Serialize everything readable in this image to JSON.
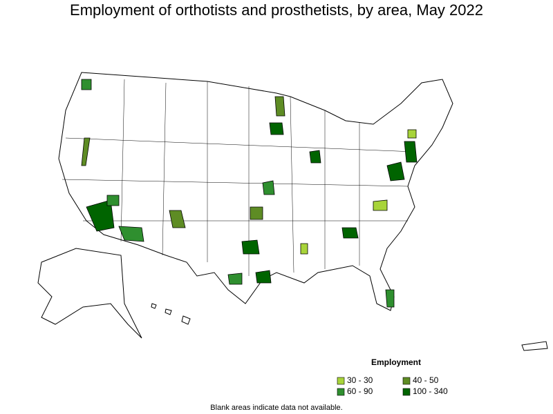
{
  "title": "Employment of orthotists and prosthetists, by area, May 2022",
  "legend": {
    "title": "Employment",
    "items": [
      {
        "label": "30 - 30",
        "color": "#a8d43a"
      },
      {
        "label": "40 - 50",
        "color": "#5e8c24"
      },
      {
        "label": "60 - 90",
        "color": "#2f8f2f"
      },
      {
        "label": "100 - 340",
        "color": "#006400"
      }
    ]
  },
  "footnote": "Blank areas indicate data not available."
}
